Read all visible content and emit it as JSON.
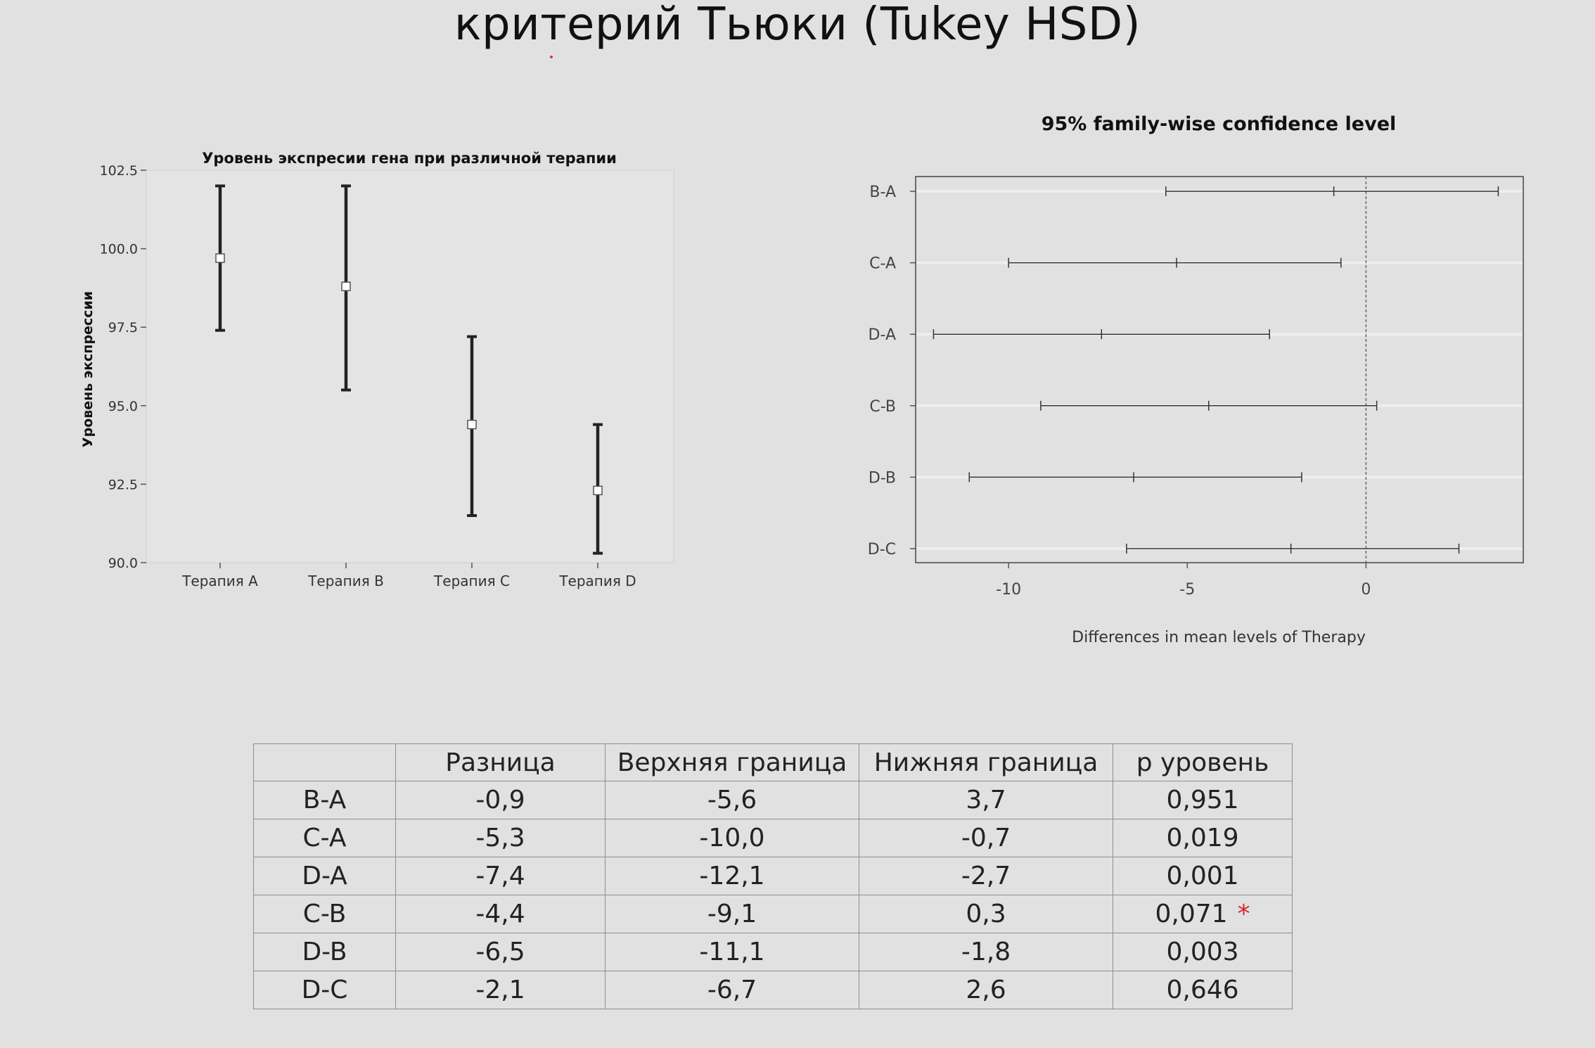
{
  "slide": {
    "title": "критерий Тьюки (Tukey HSD)"
  },
  "colors": {
    "star": "#d42a2a",
    "line": "#222222",
    "marker_fill": "#ffffff"
  },
  "chart_data": [
    {
      "type": "scatter",
      "variant": "error-bar",
      "title": "Уровень экспресии гена при различной терапии",
      "ylabel": "Уровень экспрессии",
      "xlabel": "",
      "categories": [
        "Терапия A",
        "Терапия B",
        "Терапия C",
        "Терапия D"
      ],
      "means": [
        99.7,
        98.8,
        94.4,
        92.3
      ],
      "lower": [
        97.4,
        95.5,
        91.5,
        90.3
      ],
      "upper": [
        102.0,
        102.0,
        97.2,
        94.4
      ],
      "ylim": [
        90.0,
        102.5
      ],
      "yticks": [
        "90.0",
        "92.5",
        "95.0",
        "97.5",
        "100.0",
        "102.5"
      ],
      "grid": false,
      "legend": "none"
    },
    {
      "type": "scatter",
      "variant": "confidence-interval",
      "title": "95% family-wise confidence level",
      "xlabel": "Differences in mean levels of Therapy",
      "ylabel": "",
      "categories": [
        "B-A",
        "C-A",
        "D-A",
        "C-B",
        "D-B",
        "D-C"
      ],
      "diff": [
        -0.9,
        -5.3,
        -7.4,
        -4.4,
        -6.5,
        -2.1
      ],
      "lwr": [
        -5.6,
        -10.0,
        -12.1,
        -9.1,
        -11.1,
        -6.7
      ],
      "upr": [
        3.7,
        -0.7,
        -2.7,
        0.3,
        -1.8,
        2.6
      ],
      "xlim": [
        -12.6,
        4.4
      ],
      "xticks": [
        "-10",
        "-5",
        "0"
      ],
      "reference_line": 0,
      "grid": true,
      "legend": "none"
    }
  ],
  "table": {
    "headers": [
      "",
      "Разница",
      "Верхняя граница",
      "Нижняя граница",
      "р уровень"
    ],
    "rows": [
      {
        "pair": "B-A",
        "diff": "-0,9",
        "upper": "-5,6",
        "lower": "3,7",
        "p": "0,951",
        "star": ""
      },
      {
        "pair": "C-A",
        "diff": "-5,3",
        "upper": "-10,0",
        "lower": "-0,7",
        "p": "0,019",
        "star": ""
      },
      {
        "pair": "D-A",
        "diff": "-7,4",
        "upper": "-12,1",
        "lower": "-2,7",
        "p": "0,001",
        "star": ""
      },
      {
        "pair": "C-B",
        "diff": "-4,4",
        "upper": "-9,1",
        "lower": "0,3",
        "p": "0,071",
        "star": "*"
      },
      {
        "pair": "D-B",
        "diff": "-6,5",
        "upper": "-11,1",
        "lower": "-1,8",
        "p": "0,003",
        "star": ""
      },
      {
        "pair": "D-C",
        "diff": "-2,1",
        "upper": "-6,7",
        "lower": "2,6",
        "p": "0,646",
        "star": ""
      }
    ]
  }
}
